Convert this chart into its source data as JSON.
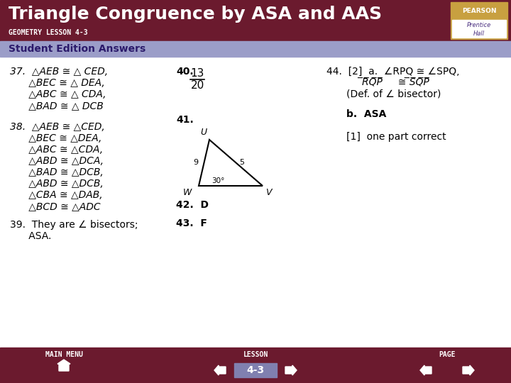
{
  "title": "Triangle Congruence by ASA and AAS",
  "subtitle": "GEOMETRY LESSON 4-3",
  "header_bg": "#6B1A2E",
  "subheader_bg": "#9B9DC8",
  "subheader_text": "Student Edition Answers",
  "footer_bg": "#6B1A2E",
  "page_bg": "#FFFFFF",
  "title_color": "#FFFFFF",
  "subtitle_color": "#FFFFFF",
  "body_color": "#000000",
  "q37_lines": [
    "37.  △AEB ≅ △ CED,",
    "      △BEC ≅ △ DEA,",
    "      △ABC ≅ △ CDA,",
    "      △BAD ≅ △ DCB"
  ],
  "q38_lines": [
    "38.  △AEB ≅ △CED,",
    "      △BEC ≅ △DEA,",
    "      △ABC ≅ △CDA,",
    "      △ABD ≅ △DCA,",
    "      △BAD ≅ △DCB,",
    "      △ABD ≅ △DCB,",
    "      △CBA ≅ △DAB,",
    "      △BCD ≅ △ADC"
  ],
  "q39_lines": [
    "39.  They are ∠ bisectors;",
    "      ASA."
  ],
  "q40": "40.",
  "q40_frac_num": "13",
  "q40_frac_den": "20",
  "q41": "41.",
  "q42": "42.  D",
  "q43": "43.  F",
  "q44_lines": [
    "44.  [2]  a.  ∠RPQ ≅ ∠SPQ,",
    "              ̅R̅Q̅P̅     ≅ ̅S̅Q̅P̅",
    "           (Def. of ∠ bisector)"
  ],
  "q44b": "b.  ASA",
  "q44c": "[1]  one part correct",
  "footer_label_main": "MAIN MENU",
  "footer_label_lesson": "LESSON",
  "footer_label_page": "PAGE",
  "footer_lesson_num": "4-3"
}
